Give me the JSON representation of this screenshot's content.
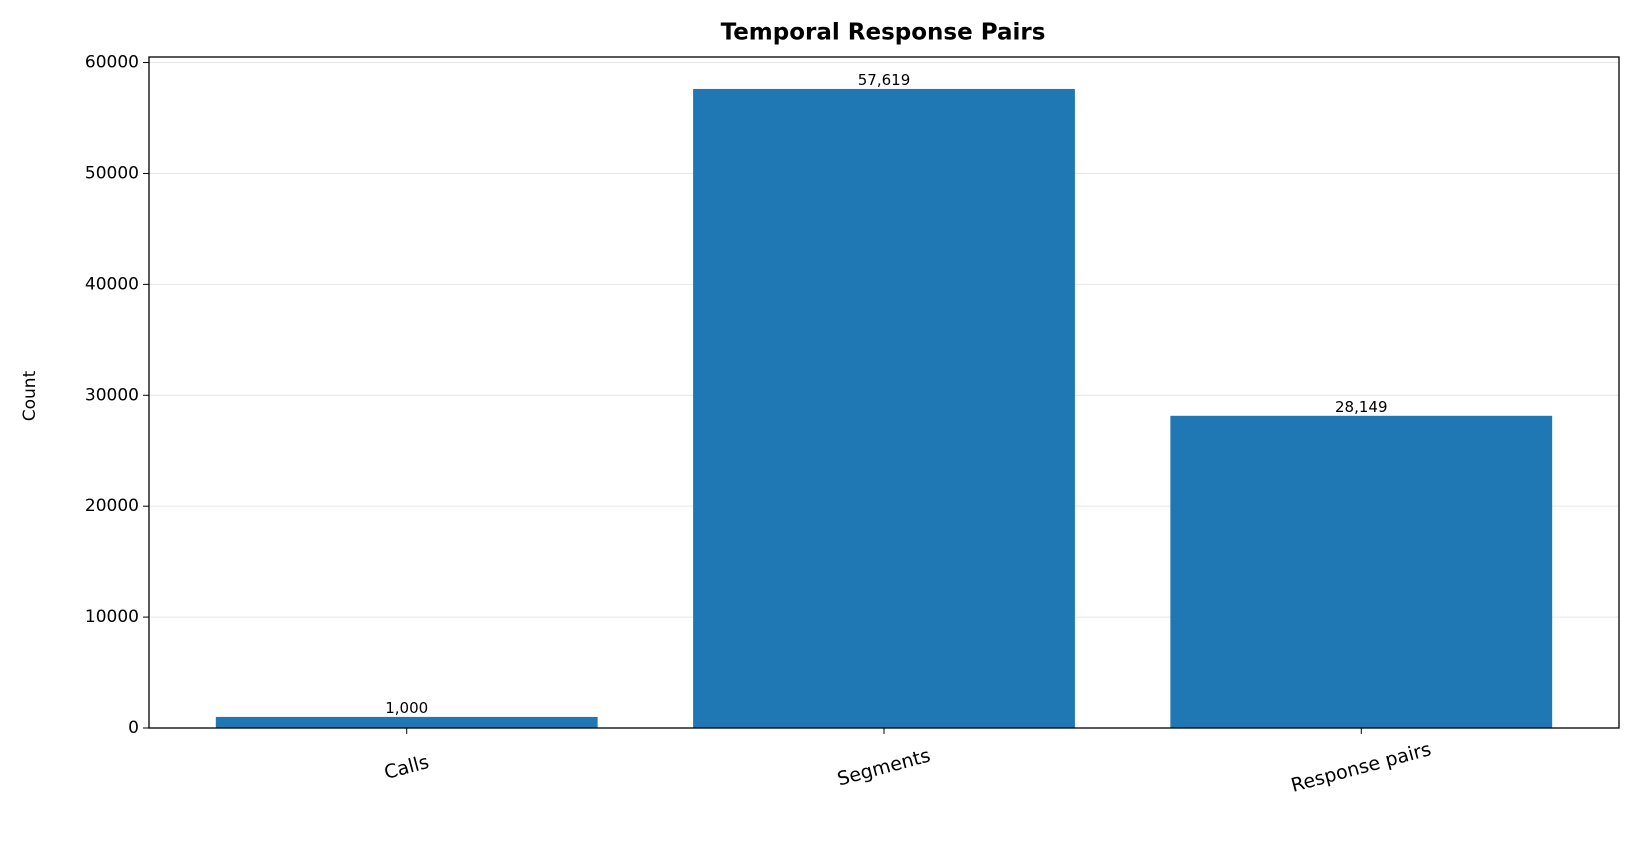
{
  "chart_data": {
    "type": "bar",
    "title": "Temporal Response Pairs",
    "y_label": "Count",
    "categories": [
      "Calls",
      "Segments",
      "Response pairs"
    ],
    "values": [
      1000,
      57619,
      28149
    ],
    "value_labels": [
      "1,000",
      "57,619",
      "28,149"
    ],
    "color": "#1f77b4",
    "ylim": [
      0,
      60500
    ],
    "yticks": [
      0,
      10000,
      20000,
      30000,
      40000,
      50000,
      60000
    ],
    "grid": true
  }
}
